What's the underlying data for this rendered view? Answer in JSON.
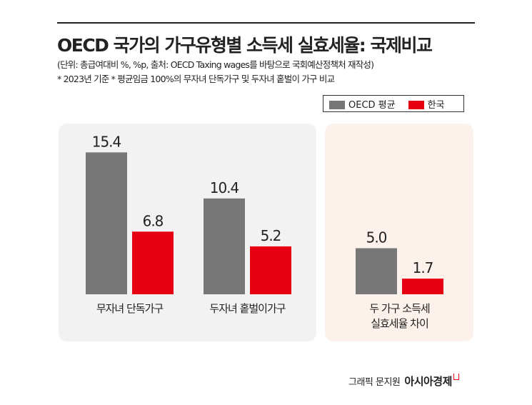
{
  "title": "OECD 국가의 가구유형별 소득세 실효세율: 국제비교",
  "subtitle1": "(단위: 총급여대비 %, %p, 출처: OECD Taxing wages를 바탕으로 국회예산정책처 재작성)",
  "subtitle2": "* 2023년 기준  * 평균임금 100%의 무자녀 단독가구 및 두자녀 홑벌이 가구 비교",
  "colors": {
    "oecd": "#777777",
    "korea": "#e60012",
    "panel_left": "#f2f2f2",
    "panel_right": "#fdf1ec"
  },
  "chart_data": {
    "type": "bar",
    "categories": [
      "무자녀 단독가구",
      "두자녀 홑벌이가구",
      "두 가구 소득세 실효세율 차이"
    ],
    "series": [
      {
        "name": "OECD 평균",
        "values": [
          15.4,
          10.4,
          5.0
        ],
        "labels": [
          "15.4",
          "10.4",
          "5.0"
        ]
      },
      {
        "name": "한국",
        "values": [
          6.8,
          5.2,
          1.7
        ],
        "labels": [
          "6.8",
          "5.2",
          "1.7"
        ]
      }
    ],
    "legend_placement": "top-right",
    "grid": false
  },
  "category_lines": [
    [
      "무자녀 단독가구"
    ],
    [
      "두자녀 홑벌이가구"
    ],
    [
      "두 가구 소득세",
      "실효세율 차이"
    ]
  ],
  "footer": {
    "credit": "그래픽 문지원",
    "brand": "아시아경제"
  }
}
